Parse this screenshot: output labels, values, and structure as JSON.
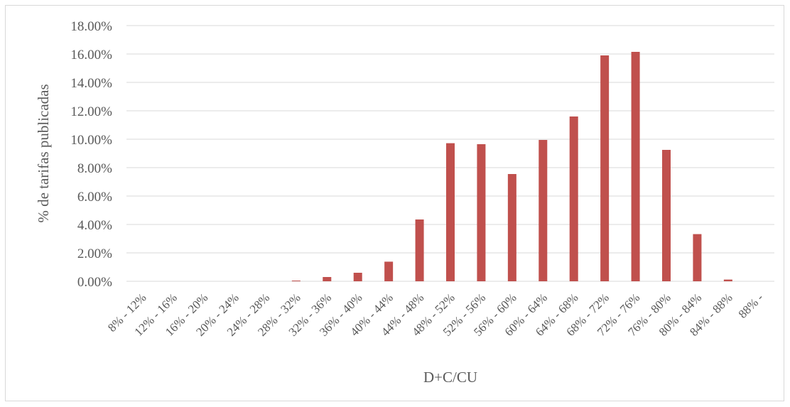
{
  "chart_data": {
    "type": "bar",
    "title": "",
    "xlabel": "D+C/CU",
    "ylabel": "% de tarifas publicadas",
    "ylim": [
      0,
      0.18
    ],
    "yticks": [
      "0.00%",
      "2.00%",
      "4.00%",
      "6.00%",
      "8.00%",
      "10.00%",
      "12.00%",
      "14.00%",
      "16.00%",
      "18.00%"
    ],
    "grid": true,
    "legend": "none",
    "bar_color": "#c0504d",
    "categories": [
      "8% - 12%",
      "12% - 16%",
      "16% - 20%",
      "20% - 24%",
      "24% - 28%",
      "28% - 32%",
      "32% - 36%",
      "36% - 40%",
      "40% - 44%",
      "44% - 48%",
      "48% - 52%",
      "52% - 56%",
      "56% - 60%",
      "60% - 64%",
      "64% - 68%",
      "68% - 72%",
      "72% - 76%",
      "76% - 80%",
      "80% - 84%",
      "84% - 88%",
      "88% -"
    ],
    "values": [
      0,
      0,
      0,
      0,
      0,
      0.0005,
      0.003,
      0.006,
      0.0138,
      0.0435,
      0.0972,
      0.0965,
      0.0755,
      0.0995,
      0.116,
      0.159,
      0.1615,
      0.0925,
      0.0332,
      0.0012,
      0
    ]
  }
}
